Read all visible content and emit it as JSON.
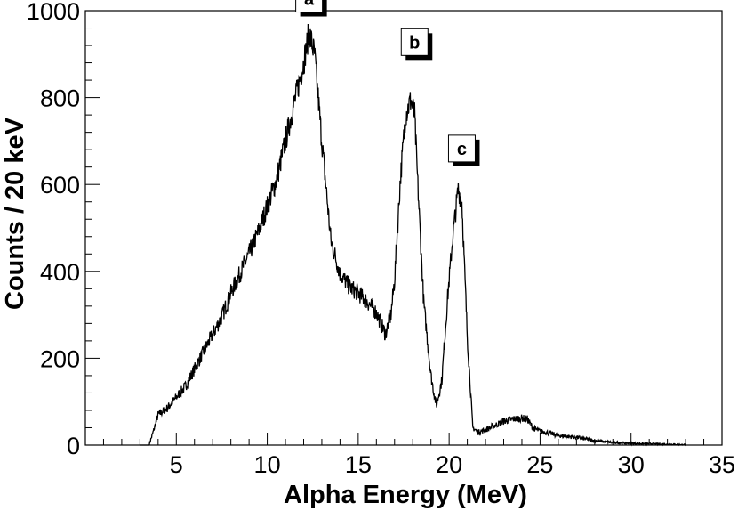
{
  "chart_data": {
    "type": "line",
    "title": "",
    "xlabel": "Alpha Energy (MeV)",
    "ylabel": "Counts / 20 keV",
    "xlim": [
      0,
      35
    ],
    "ylim": [
      0,
      1000
    ],
    "x_ticks": [
      5,
      10,
      15,
      20,
      25,
      30,
      35
    ],
    "y_ticks": [
      0,
      200,
      400,
      600,
      800,
      1000
    ],
    "grid": false,
    "legend": "none",
    "series": [
      {
        "x": [
          3.0,
          3.5,
          3.8,
          4.0,
          4.5,
          5.0,
          5.5,
          6.0,
          6.5,
          7.0,
          7.5,
          8.0,
          8.5,
          9.0,
          9.5,
          10.0,
          10.5,
          11.0,
          11.5,
          12.0,
          12.3,
          12.6,
          13.0,
          13.5,
          14.0,
          14.5,
          15.0,
          15.5,
          16.0,
          16.5,
          16.8,
          17.0,
          17.3,
          17.6,
          17.9,
          18.1,
          18.3,
          18.6,
          19.0,
          19.3,
          19.6,
          19.9,
          20.2,
          20.5,
          20.7,
          21.0,
          21.3,
          21.6,
          22.0,
          22.5,
          23.0,
          23.5,
          24.0,
          24.3,
          24.6,
          25.0,
          25.5,
          26.0,
          27.0,
          28.0,
          29.0,
          30.0,
          31.0,
          32.0,
          33.0
        ],
        "y": [
          0,
          0,
          40,
          70,
          85,
          110,
          135,
          175,
          215,
          255,
          295,
          350,
          395,
          440,
          490,
          550,
          610,
          700,
          790,
          880,
          950,
          900,
          700,
          470,
          395,
          365,
          350,
          330,
          305,
          255,
          300,
          380,
          600,
          760,
          795,
          760,
          580,
          330,
          160,
          90,
          150,
          330,
          480,
          590,
          560,
          250,
          40,
          30,
          35,
          45,
          55,
          60,
          62,
          60,
          40,
          32,
          28,
          22,
          18,
          10,
          6,
          4,
          3,
          2,
          1
        ]
      }
    ],
    "annotations": [
      {
        "label": "a",
        "x": 12.3,
        "y": 960
      },
      {
        "label": "b",
        "x": 18.1,
        "y": 860
      },
      {
        "label": "c",
        "x": 20.7,
        "y": 615
      }
    ]
  }
}
